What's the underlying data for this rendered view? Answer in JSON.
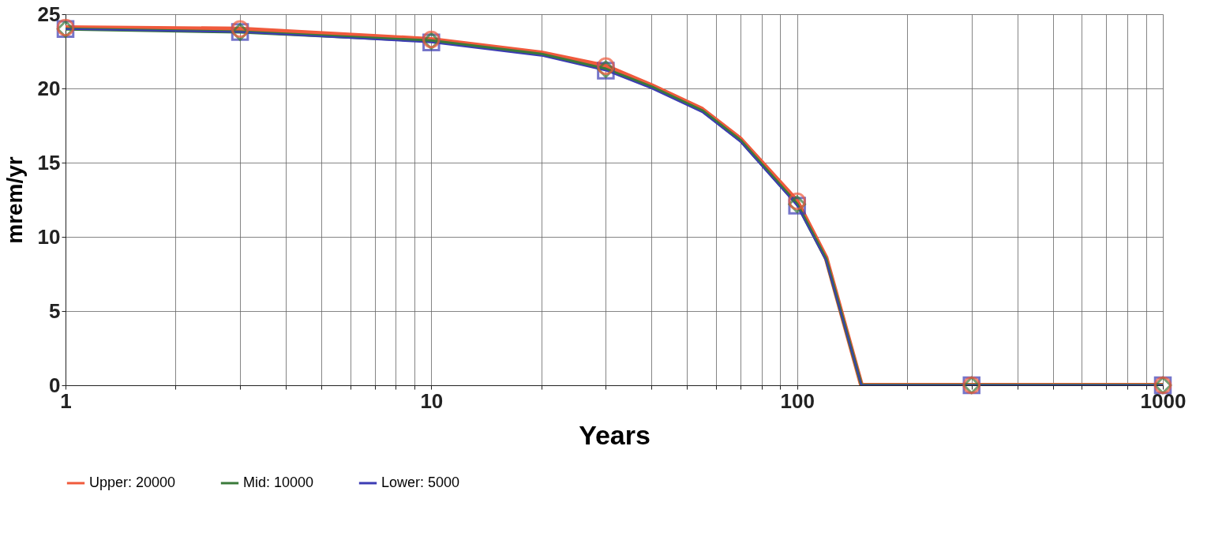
{
  "chart_data": {
    "type": "line",
    "xlabel": "Years",
    "ylabel": "mrem/yr",
    "log": "x",
    "xlim": [
      1,
      1000
    ],
    "ylim": [
      0,
      25
    ],
    "xticks": [
      1,
      {
        "value": 2,
        "label": null
      },
      {
        "value": 3,
        "label": null
      },
      {
        "value": 4,
        "label": null
      },
      {
        "value": 5,
        "label": null
      },
      {
        "value": 6,
        "label": null
      },
      {
        "value": 7,
        "label": null
      },
      {
        "value": 8,
        "label": null
      },
      {
        "value": 9,
        "label": null
      },
      10,
      {
        "value": 20,
        "label": null
      },
      {
        "value": 30,
        "label": null
      },
      {
        "value": 40,
        "label": null
      },
      {
        "value": 50,
        "label": null
      },
      {
        "value": 60,
        "label": null
      },
      {
        "value": 70,
        "label": null
      },
      {
        "value": 80,
        "label": null
      },
      {
        "value": 90,
        "label": null
      },
      100,
      {
        "value": 200,
        "label": null
      },
      {
        "value": 300,
        "label": null
      },
      {
        "value": 400,
        "label": null
      },
      {
        "value": 500,
        "label": null
      },
      {
        "value": 600,
        "label": null
      },
      {
        "value": 700,
        "label": null
      },
      {
        "value": 800,
        "label": null
      },
      {
        "value": 900,
        "label": null
      },
      1000
    ],
    "yticks": [
      0,
      5,
      10,
      15,
      20,
      25
    ],
    "grid": true,
    "legend": "bottom",
    "series": [
      {
        "name": "Upper: 20000",
        "color": "#f05a3c",
        "marker": "none",
        "x": [
          1,
          3,
          10,
          20,
          30,
          40,
          55,
          70,
          100,
          120,
          150,
          300,
          1000
        ],
        "values": [
          24.1,
          24.0,
          23.3,
          22.4,
          21.5,
          20.2,
          18.6,
          16.6,
          12.4,
          8.6,
          0,
          0,
          0
        ]
      },
      {
        "name": "Mid: 10000",
        "color": "#3a7a3a",
        "marker": "none",
        "x": [
          1,
          3,
          10,
          20,
          30,
          40,
          55,
          70,
          100,
          120,
          150,
          300,
          1000
        ],
        "values": [
          24.0,
          23.8,
          23.2,
          22.3,
          21.3,
          20.1,
          18.5,
          16.5,
          12.2,
          8.5,
          0,
          0,
          0
        ]
      },
      {
        "name": "Lower: 5000",
        "color": "#3c3cb4",
        "marker": "none",
        "x": [
          1,
          3,
          10,
          20,
          30,
          40,
          55,
          70,
          100,
          120,
          150,
          300,
          1000
        ],
        "values": [
          24.0,
          23.8,
          23.1,
          22.2,
          21.2,
          20.0,
          18.4,
          16.4,
          12.1,
          8.4,
          0,
          0,
          0
        ]
      },
      {
        "color": "#3c3cb4",
        "type": "scatter",
        "marker": "square",
        "x": [
          1,
          3,
          10,
          30,
          100,
          300,
          1000
        ],
        "values": [
          24.0,
          23.8,
          23.1,
          21.2,
          12.1,
          0,
          0
        ]
      },
      {
        "color": "#3a7a3a",
        "type": "scatter",
        "marker": "diamond",
        "x": [
          1,
          3,
          10,
          30,
          100,
          300,
          1000
        ],
        "values": [
          24.0,
          23.8,
          23.2,
          21.3,
          12.2,
          0,
          0
        ]
      },
      {
        "color": "#f05a3c",
        "type": "scatter",
        "marker": "circle",
        "x": [
          1,
          3,
          10,
          30,
          100,
          300,
          1000
        ],
        "values": [
          24.1,
          24.0,
          23.3,
          21.5,
          12.4,
          0,
          0
        ]
      }
    ]
  }
}
